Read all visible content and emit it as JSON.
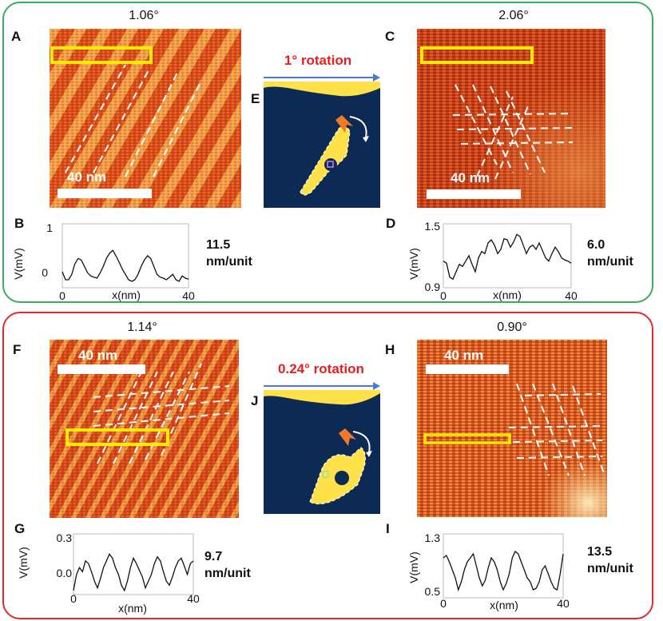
{
  "colors": {
    "top_frame": "#3aae5a",
    "bottom_frame": "#e0282e",
    "rotation_text": "#e41f1f",
    "arrow": "#4a7cc9",
    "highlight_box": "#ffea00",
    "scale_bar": "#ffffff"
  },
  "top": {
    "panel_A": {
      "label": "A",
      "angle": "1.06°",
      "scale_bar": "40 nm"
    },
    "panel_C": {
      "label": "C",
      "angle": "2.06°",
      "scale_bar": "40 nm"
    },
    "panel_E": {
      "label": "E",
      "rotation": "1° rotation"
    },
    "panel_B": {
      "label": "B",
      "period_value": "11.5",
      "period_unit": "nm/unit",
      "y_label": "V(mV)",
      "x_label": "x(nm)",
      "y_ticks": [
        "1",
        "0"
      ],
      "x_ticks": [
        "0",
        "40"
      ]
    },
    "panel_D": {
      "label": "D",
      "period_value": "6.0",
      "period_unit": "nm/unit",
      "y_label": "V(mV)",
      "x_label": "x(nm)",
      "y_ticks": [
        "1.5",
        "0.9"
      ],
      "x_ticks": [
        "0",
        "40"
      ]
    }
  },
  "bottom": {
    "panel_F": {
      "label": "F",
      "angle": "1.14°",
      "scale_bar": "40 nm"
    },
    "panel_H": {
      "label": "H",
      "angle": "0.90°",
      "scale_bar": "40 nm"
    },
    "panel_J": {
      "label": "J",
      "rotation": "0.24° rotation"
    },
    "panel_G": {
      "label": "G",
      "period_value": "9.7",
      "period_unit": "nm/unit",
      "y_label": "V(mV)",
      "x_label": "x(nm)",
      "y_ticks": [
        "0.3",
        "0.0"
      ],
      "x_ticks": [
        "0",
        "40"
      ]
    },
    "panel_I": {
      "label": "I",
      "period_value": "13.5",
      "period_unit": "nm/unit",
      "y_label": "V(mV)",
      "x_label": "x(nm)",
      "y_ticks": [
        "1.3",
        "0.5"
      ],
      "x_ticks": [
        "0",
        "40"
      ]
    }
  },
  "chart_data": [
    {
      "type": "line",
      "panel": "B",
      "xlim": [
        0,
        40
      ],
      "ylim": [
        -0.2,
        1.0
      ],
      "x": [
        0,
        1,
        2,
        3,
        4,
        5,
        6,
        7,
        8,
        9,
        10,
        11,
        12,
        13,
        14,
        15,
        16,
        17,
        18,
        19,
        20,
        21,
        22,
        23,
        24,
        25,
        26,
        27,
        28,
        29,
        30,
        31,
        32,
        33,
        34,
        35,
        36,
        37,
        38,
        39,
        40
      ],
      "y": [
        0.1,
        -0.05,
        -0.05,
        0.05,
        0.25,
        0.35,
        0.32,
        0.2,
        0.08,
        0.02,
        0.0,
        -0.02,
        0.08,
        0.2,
        0.35,
        0.45,
        0.5,
        0.4,
        0.28,
        0.15,
        0.05,
        -0.05,
        -0.08,
        -0.05,
        0.05,
        0.2,
        0.32,
        0.4,
        0.35,
        0.2,
        0.05,
        0.0,
        -0.02,
        -0.05,
        0.0,
        0.05,
        -0.05,
        -0.08,
        0.02,
        -0.02,
        -0.04
      ]
    },
    {
      "type": "line",
      "panel": "D",
      "xlim": [
        0,
        40
      ],
      "ylim": [
        0.9,
        1.5
      ],
      "x": [
        0,
        1,
        2,
        3,
        4,
        5,
        6,
        7,
        8,
        9,
        10,
        11,
        12,
        13,
        14,
        15,
        16,
        17,
        18,
        19,
        20,
        21,
        22,
        23,
        24,
        25,
        26,
        27,
        28,
        29,
        30,
        31,
        32,
        33,
        34,
        35,
        36,
        37,
        38,
        39,
        40
      ],
      "y": [
        1.15,
        1.13,
        1.0,
        0.98,
        1.05,
        1.12,
        1.1,
        1.15,
        1.2,
        1.12,
        1.05,
        1.18,
        1.24,
        1.22,
        1.32,
        1.35,
        1.3,
        1.22,
        1.26,
        1.36,
        1.35,
        1.28,
        1.33,
        1.4,
        1.38,
        1.3,
        1.22,
        1.28,
        1.3,
        1.26,
        1.32,
        1.25,
        1.18,
        1.15,
        1.22,
        1.28,
        1.24,
        1.18,
        1.16,
        1.15,
        1.13
      ]
    },
    {
      "type": "line",
      "panel": "G",
      "xlim": [
        0,
        40
      ],
      "ylim": [
        -0.15,
        0.3
      ],
      "x": [
        0,
        1,
        2,
        3,
        4,
        5,
        6,
        7,
        8,
        9,
        10,
        11,
        12,
        13,
        14,
        15,
        16,
        17,
        18,
        19,
        20,
        21,
        22,
        23,
        24,
        25,
        26,
        27,
        28,
        29,
        30,
        31,
        32,
        33,
        34,
        35,
        36,
        37,
        38,
        39,
        40
      ],
      "y": [
        -0.12,
        0.0,
        0.05,
        0.02,
        0.1,
        0.08,
        0.02,
        -0.05,
        -0.1,
        -0.03,
        0.05,
        0.1,
        0.15,
        0.12,
        0.05,
        0.0,
        -0.08,
        -0.12,
        -0.05,
        0.05,
        0.12,
        0.08,
        0.03,
        -0.02,
        -0.1,
        -0.05,
        0.0,
        0.08,
        0.13,
        0.1,
        0.02,
        -0.05,
        -0.08,
        -0.02,
        0.05,
        0.1,
        0.12,
        0.06,
        0.0,
        0.08,
        0.1
      ]
    },
    {
      "type": "line",
      "panel": "I",
      "xlim": [
        0,
        40
      ],
      "ylim": [
        0.5,
        1.3
      ],
      "x": [
        0,
        1,
        2,
        3,
        4,
        5,
        6,
        7,
        8,
        9,
        10,
        11,
        12,
        13,
        14,
        15,
        16,
        17,
        18,
        19,
        20,
        21,
        22,
        23,
        24,
        25,
        26,
        27,
        28,
        29,
        30,
        31,
        32,
        33,
        34,
        35,
        36,
        37,
        38,
        39,
        40
      ],
      "y": [
        1.0,
        1.03,
        0.95,
        0.85,
        0.75,
        0.6,
        0.7,
        0.85,
        0.95,
        1.0,
        1.05,
        0.9,
        0.75,
        0.65,
        0.72,
        0.88,
        1.0,
        0.95,
        0.85,
        0.7,
        0.6,
        0.68,
        0.8,
        1.0,
        1.08,
        1.05,
        0.95,
        0.85,
        0.75,
        0.7,
        0.6,
        0.62,
        0.7,
        0.85,
        0.9,
        0.8,
        0.7,
        0.62,
        0.6,
        0.8,
        1.05
      ]
    }
  ]
}
